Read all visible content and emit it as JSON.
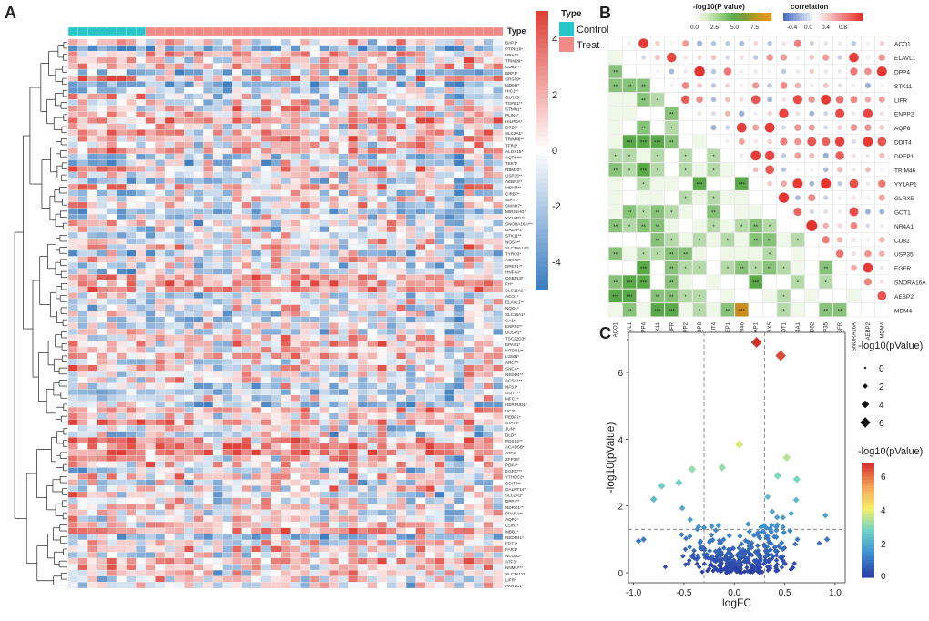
{
  "panels": {
    "a": "A",
    "b": "B",
    "c": "C"
  },
  "colors": {
    "control": "#27c6c9",
    "treat": "#f08a86",
    "high": "#e0423a",
    "mid": "#ffffff",
    "low": "#3f7ec0"
  },
  "chart_data": [
    {
      "type": "heatmap",
      "panel": "A",
      "annotation_title": "Type",
      "groups": [
        "Control",
        "Treat"
      ],
      "n_control": 8,
      "n_treat": 37,
      "colorbar_ticks": [
        4,
        2,
        0,
        -2,
        -4
      ],
      "value_range": [
        -5,
        5
      ],
      "row_labels": [
        "BAP1*",
        "PTPN18*",
        "HRAS*",
        "TRIM26*",
        "CD82***",
        "BRF1*",
        "SRSF9*",
        "MDM2*",
        "HIC1**",
        "GLRX5**",
        "TGFB1**",
        "STMN1*",
        "PLIN4*",
        "HILPDA*",
        "DRD5*",
        "SLC2A1*",
        "TRIM46**",
        "TFR2*",
        "ALOX15*",
        "AQP8***",
        "TEKT*",
        "RBM20*",
        "USP35**",
        "AEBP2**",
        "MDM4**",
        "CIRBP*",
        "SIRT1*",
        "SMAD7*",
        "MIR21HG*",
        "YY1AP1**",
        "SNORA16A***",
        "DAZAP1*",
        "STK11**",
        "NOS3**",
        "SLC39A14**",
        "TYRO3*",
        "ACSF2*",
        "DPEP1**",
        "HNF4A*",
        "OSBPL9*",
        "FH*",
        "SLC11A2**",
        "ACO1*",
        "ELAVL1**",
        "NQO1*",
        "SLC16A1*",
        "CA1*",
        "ENPP2**",
        "DUSP1*",
        "TSC22D3*",
        "EPAS1*",
        "MTOR1**",
        "LGMN*",
        "ARCY*",
        "SNCA*",
        "NEDD4**",
        "ACSL1**",
        "NFS1*",
        "GOT1**",
        "MFC1*",
        "HERPUD1*",
        "VC3**",
        "PEBP1*",
        "STAT3*",
        "JUN*",
        "DLD*",
        "PDSS2**",
        "ACADSB*",
        "ATF2*",
        "ZFP36*",
        "PDK4*",
        "EGFR***",
        "YTHDC2*",
        "DDIT4**",
        "GALNT14*",
        "SLC2A3*",
        "DPP4**",
        "NDRG1**",
        "PPARA**",
        "AQP3*",
        "CDH1*",
        "MBB1*",
        "NEDD4L*",
        "EPT1*",
        "FAR1*",
        "NCOA3*",
        "ATF3*",
        "NNMU***",
        "SLC2A12*",
        "LIFR*",
        "AKR1C1*"
      ],
      "cells": "generated deterministically from palette; per-cell values not labeled"
    },
    {
      "type": "heatmap",
      "panel": "B",
      "genes": [
        "ACO1",
        "ELAVL1",
        "DPP4",
        "STK11",
        "LIFR",
        "ENPP2",
        "AQP8",
        "DDIT4",
        "DPEP1",
        "TRIM46",
        "YY1AP1",
        "GLRX5",
        "GOT1",
        "NR4A1",
        "CD82",
        "USP35",
        "EGFR",
        "SNORA16A",
        "AEBP2",
        "MDM4"
      ],
      "pvalue_legend_title": "-log10(P value)",
      "pvalue_ticks": [
        "0.0",
        "2.5",
        "5.0",
        "7.5"
      ],
      "correlation_legend_title": "correlation",
      "correlation_ticks": [
        "-0.4",
        "0.0",
        "0.4",
        "0.8"
      ],
      "lower_triangle": "significance stars on green shading",
      "upper_triangle": "correlation circles"
    },
    {
      "type": "scatter",
      "panel": "C",
      "xlabel": "logFC",
      "ylabel": "-log10(pValue)",
      "xlim": [
        -1.05,
        1.1
      ],
      "ylim": [
        -0.3,
        7.2
      ],
      "xticks": [
        "-1.0",
        "-0.5",
        "0.0",
        "0.5",
        "1.0"
      ],
      "yticks": [
        "0",
        "2",
        "4",
        "6"
      ],
      "vlines": [
        -0.3,
        0.3
      ],
      "hline": 1.3,
      "size_legend_title": "-log10(pValue)",
      "size_legend_ticks": [
        "0",
        "2",
        "4",
        "6"
      ],
      "color_legend_title": "-log10(pValue)",
      "color_legend_ticks": [
        "6",
        "4",
        "2",
        "0"
      ],
      "highlight_points": [
        {
          "x": 0.22,
          "y": 6.9
        },
        {
          "x": 0.46,
          "y": 6.5
        },
        {
          "x": 0.05,
          "y": 3.85
        },
        {
          "x": 0.52,
          "y": 3.45
        },
        {
          "x": -0.42,
          "y": 3.1
        },
        {
          "x": -0.12,
          "y": 3.15
        },
        {
          "x": -0.55,
          "y": 2.7
        },
        {
          "x": 0.43,
          "y": 2.9
        },
        {
          "x": 0.62,
          "y": 2.8
        },
        {
          "x": -0.72,
          "y": 2.6
        },
        {
          "x": -0.8,
          "y": 2.2
        },
        {
          "x": -0.9,
          "y": 1.0
        },
        {
          "x": 0.92,
          "y": 1.0
        },
        {
          "x": -0.95,
          "y": 0.95
        },
        {
          "x": 0.58,
          "y": 0.15
        }
      ],
      "cloud": "about 330 additional points with |logFC| < 1 and -log10(pValue) < 2.6, concentrated near logFC 0"
    }
  ]
}
